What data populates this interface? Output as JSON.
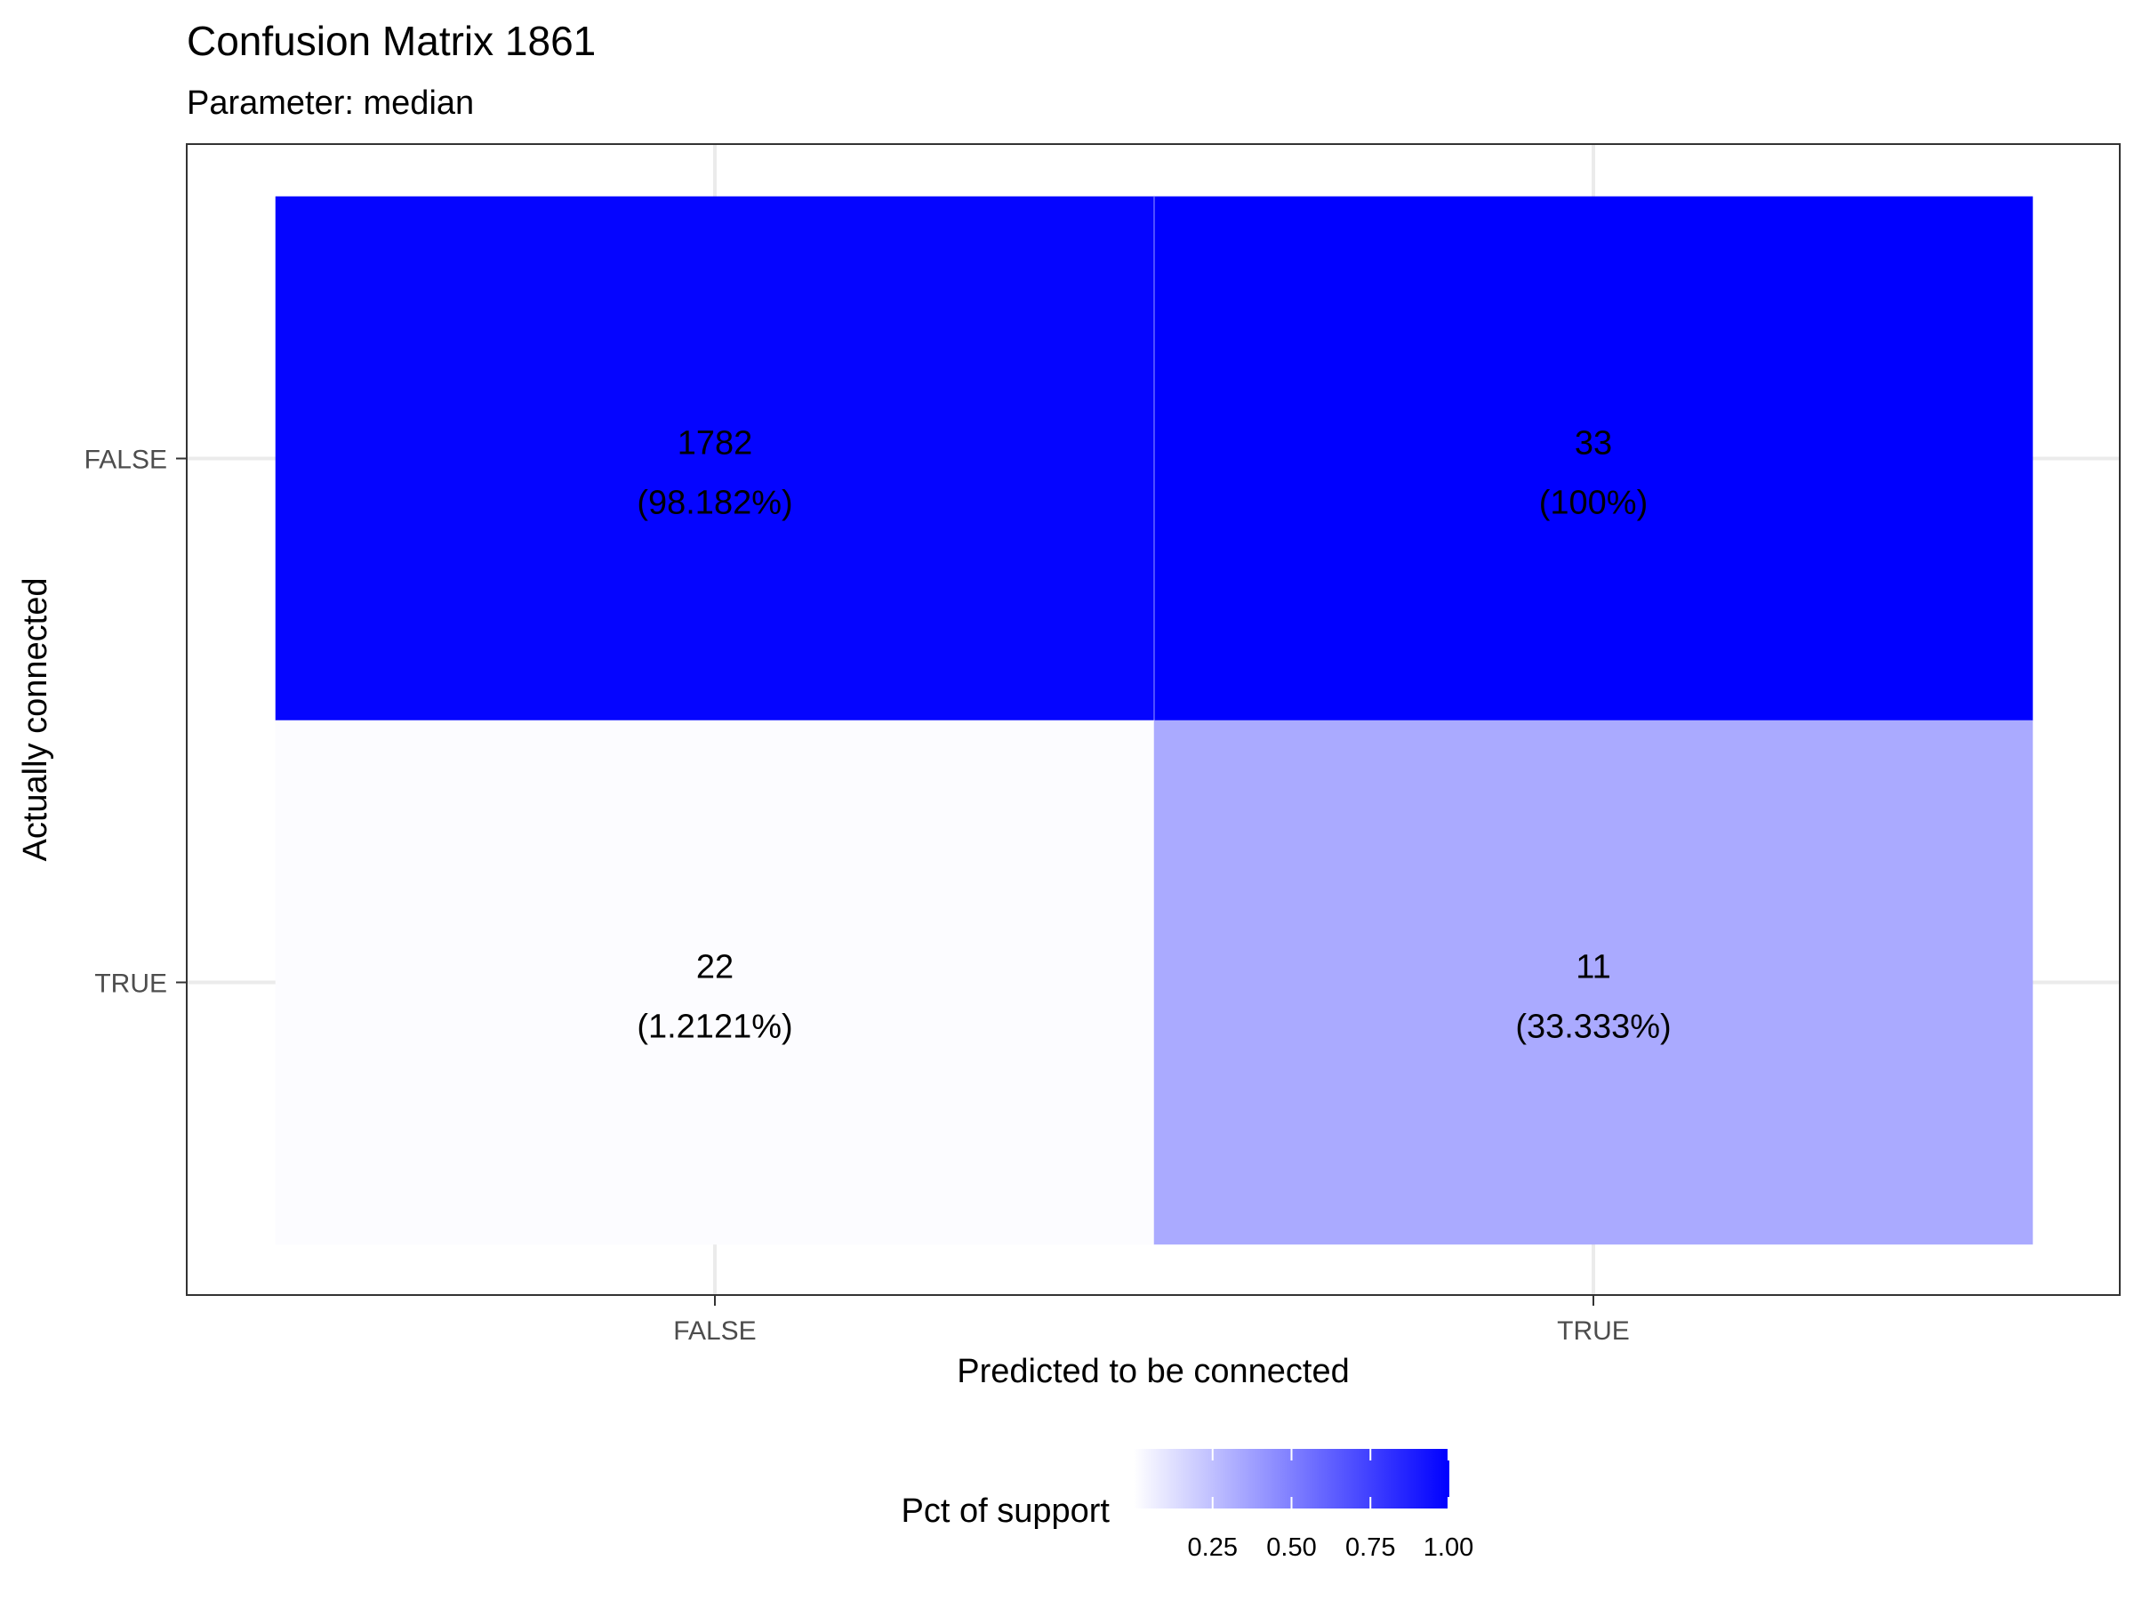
{
  "chart_data": {
    "type": "heatmap",
    "title": "Confusion Matrix 1861",
    "subtitle": "Parameter: median",
    "xlabel": "Predicted to be connected",
    "ylabel": "Actually connected",
    "x_categories": [
      "FALSE",
      "TRUE"
    ],
    "y_categories": [
      "FALSE",
      "TRUE"
    ],
    "cells": [
      {
        "predicted": "FALSE",
        "actual": "FALSE",
        "count": 1782,
        "label": "1782",
        "pct_label": "(98.182%)",
        "pct": 0.98182
      },
      {
        "predicted": "TRUE",
        "actual": "FALSE",
        "count": 33,
        "label": "33",
        "pct_label": "(100%)",
        "pct": 1.0
      },
      {
        "predicted": "FALSE",
        "actual": "TRUE",
        "count": 22,
        "label": "22",
        "pct_label": "(1.2121%)",
        "pct": 0.012121
      },
      {
        "predicted": "TRUE",
        "actual": "TRUE",
        "count": 11,
        "label": "11",
        "pct_label": "(33.333%)",
        "pct": 0.33333
      }
    ],
    "fill_scale": {
      "low": "#ffffff",
      "high": "#0000ff",
      "min": 0,
      "max": 1
    },
    "legend": {
      "title": "Pct of support",
      "position": "bottom",
      "ticks": [
        0.25,
        0.5,
        0.75,
        1.0
      ],
      "tick_labels": [
        "0.25",
        "0.50",
        "0.75",
        "1.00"
      ]
    },
    "grid": true,
    "theme": "bw"
  }
}
